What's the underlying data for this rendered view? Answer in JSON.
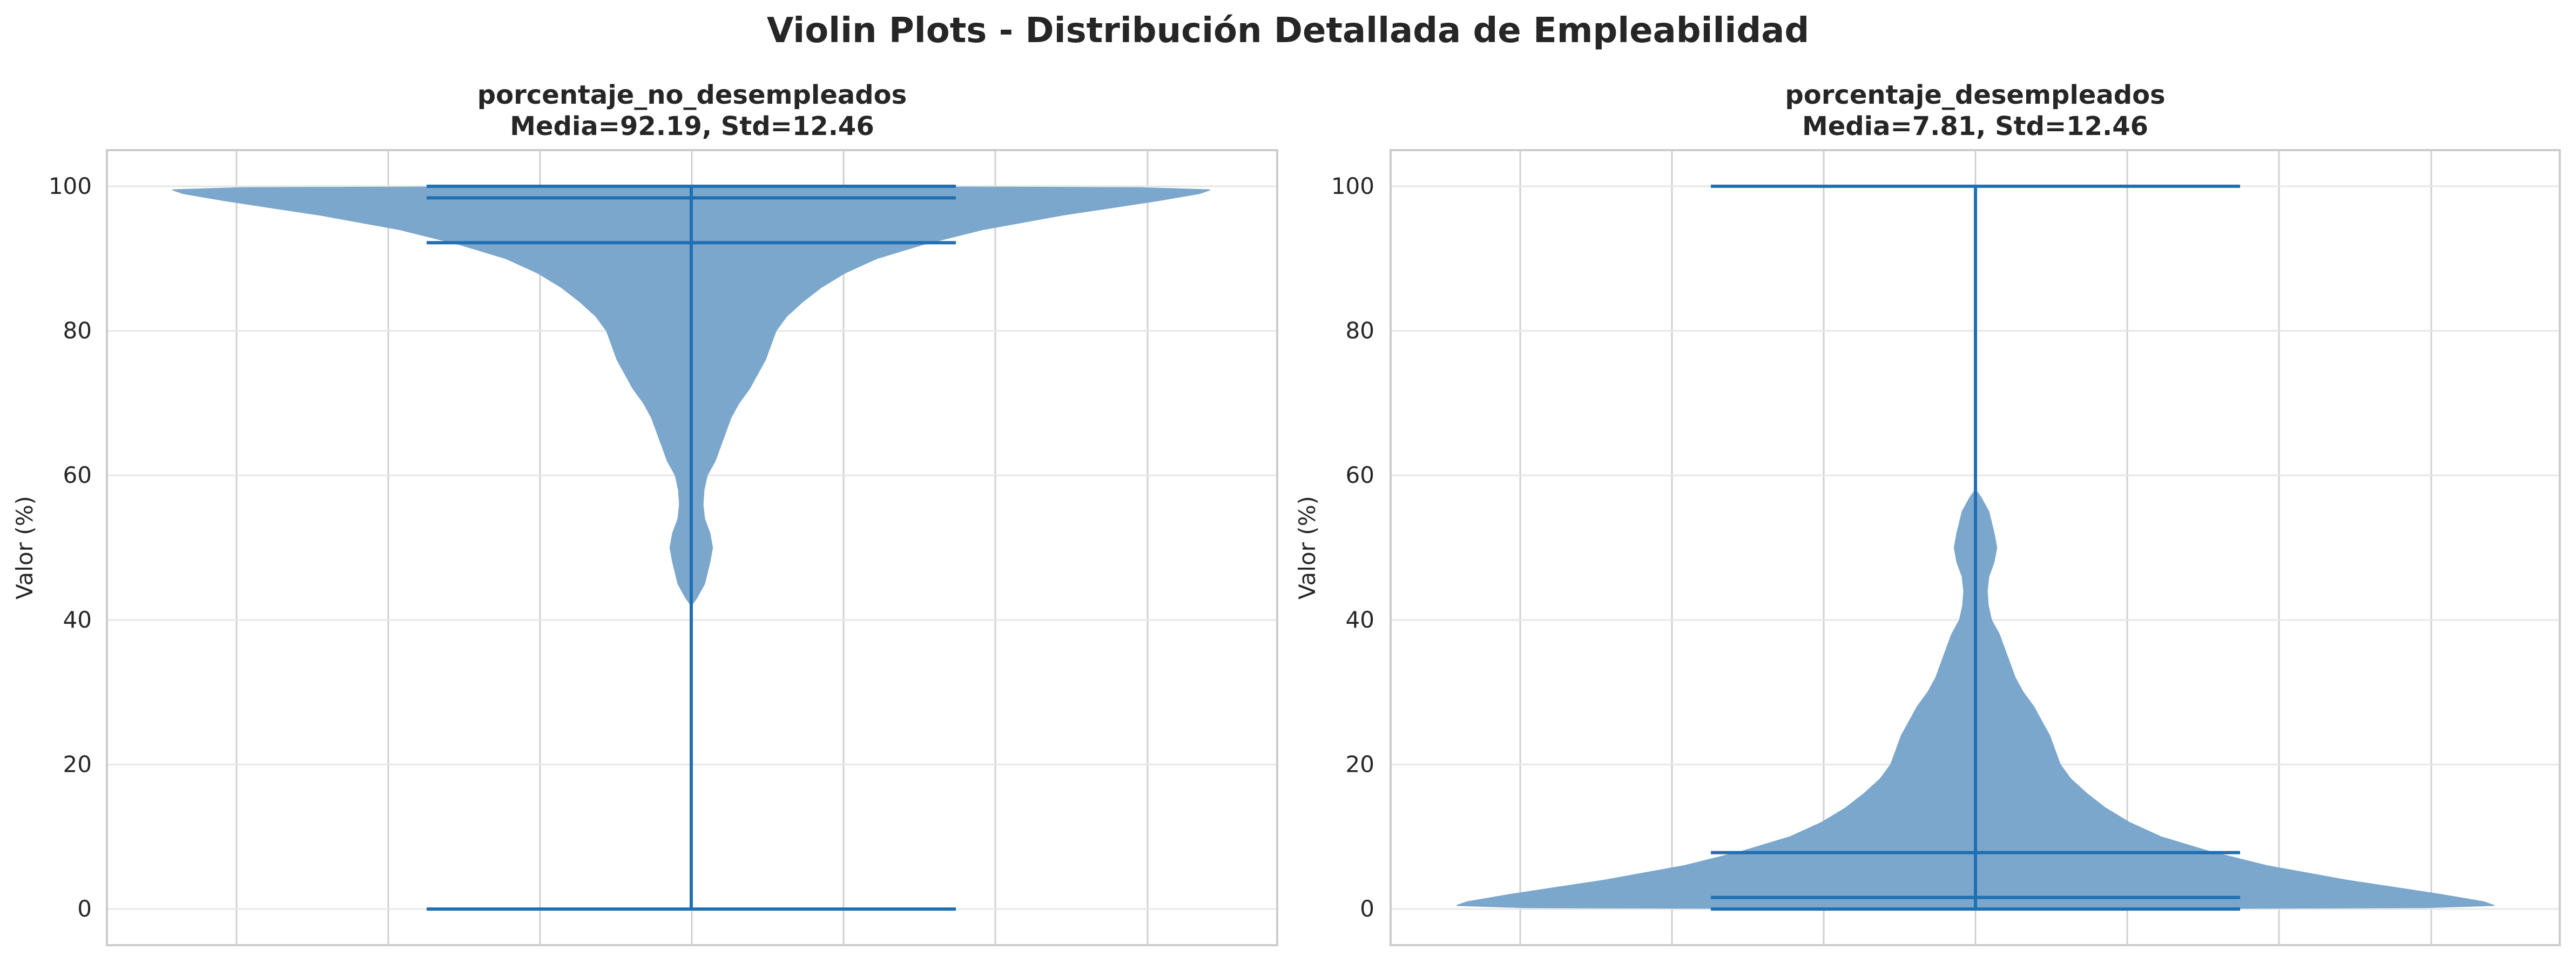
{
  "figure": {
    "title": "Violin Plots - Distribución Detallada de Empleabilidad"
  },
  "colors": {
    "violin_fill": "#7ba7cc",
    "violin_line": "#1f6fb2",
    "grid": "#e7e7e7",
    "vertical_grid": "#d0d0d0",
    "axes_border": "#cccccc",
    "text": "#262626"
  },
  "chart_data": [
    {
      "type": "violin",
      "title": "porcentaje_no_desempleados",
      "subtitle": "Media=92.19, Std=12.46",
      "xlabel": "",
      "ylabel": "Valor (%)",
      "ylim": [
        -5,
        105
      ],
      "yticks": [
        0,
        20,
        40,
        60,
        80,
        100
      ],
      "grid": true,
      "stats": {
        "min": 0,
        "max": 100,
        "mean": 92.19,
        "median": 98.4,
        "std": 12.46
      },
      "density_profile": [
        {
          "y": 42,
          "w": 0.0
        },
        {
          "y": 43,
          "w": 0.01
        },
        {
          "y": 45,
          "w": 0.025
        },
        {
          "y": 48,
          "w": 0.035
        },
        {
          "y": 50,
          "w": 0.04
        },
        {
          "y": 52,
          "w": 0.035
        },
        {
          "y": 54,
          "w": 0.025
        },
        {
          "y": 56,
          "w": 0.022
        },
        {
          "y": 58,
          "w": 0.024
        },
        {
          "y": 60,
          "w": 0.03
        },
        {
          "y": 62,
          "w": 0.045
        },
        {
          "y": 65,
          "w": 0.06
        },
        {
          "y": 68,
          "w": 0.075
        },
        {
          "y": 70,
          "w": 0.09
        },
        {
          "y": 72,
          "w": 0.11
        },
        {
          "y": 74,
          "w": 0.125
        },
        {
          "y": 76,
          "w": 0.14
        },
        {
          "y": 78,
          "w": 0.15
        },
        {
          "y": 80,
          "w": 0.16
        },
        {
          "y": 82,
          "w": 0.18
        },
        {
          "y": 84,
          "w": 0.21
        },
        {
          "y": 86,
          "w": 0.245
        },
        {
          "y": 88,
          "w": 0.29
        },
        {
          "y": 90,
          "w": 0.35
        },
        {
          "y": 92,
          "w": 0.44
        },
        {
          "y": 94,
          "w": 0.55
        },
        {
          "y": 96,
          "w": 0.7
        },
        {
          "y": 97,
          "w": 0.79
        },
        {
          "y": 98,
          "w": 0.88
        },
        {
          "y": 99,
          "w": 0.96
        },
        {
          "y": 99.5,
          "w": 0.98
        },
        {
          "y": 99.8,
          "w": 0.85
        },
        {
          "y": 100,
          "w": 0.0
        }
      ]
    },
    {
      "type": "violin",
      "title": "porcentaje_desempleados",
      "subtitle": "Media=7.81, Std=12.46",
      "xlabel": "",
      "ylabel": "Valor (%)",
      "ylim": [
        -5,
        105
      ],
      "yticks": [
        0,
        20,
        40,
        60,
        80,
        100
      ],
      "grid": true,
      "stats": {
        "min": 0,
        "max": 100,
        "mean": 7.81,
        "median": 1.6,
        "std": 12.46
      },
      "density_profile": [
        {
          "y": 0,
          "w": 0.0
        },
        {
          "y": 0.2,
          "w": 0.85
        },
        {
          "y": 0.5,
          "w": 0.98
        },
        {
          "y": 1,
          "w": 0.96
        },
        {
          "y": 2,
          "w": 0.88
        },
        {
          "y": 3,
          "w": 0.79
        },
        {
          "y": 4,
          "w": 0.7
        },
        {
          "y": 6,
          "w": 0.55
        },
        {
          "y": 8,
          "w": 0.44
        },
        {
          "y": 10,
          "w": 0.35
        },
        {
          "y": 12,
          "w": 0.29
        },
        {
          "y": 14,
          "w": 0.245
        },
        {
          "y": 16,
          "w": 0.21
        },
        {
          "y": 18,
          "w": 0.18
        },
        {
          "y": 20,
          "w": 0.16
        },
        {
          "y": 22,
          "w": 0.15
        },
        {
          "y": 24,
          "w": 0.14
        },
        {
          "y": 26,
          "w": 0.125
        },
        {
          "y": 28,
          "w": 0.11
        },
        {
          "y": 30,
          "w": 0.09
        },
        {
          "y": 32,
          "w": 0.075
        },
        {
          "y": 35,
          "w": 0.06
        },
        {
          "y": 38,
          "w": 0.045
        },
        {
          "y": 40,
          "w": 0.03
        },
        {
          "y": 42,
          "w": 0.024
        },
        {
          "y": 44,
          "w": 0.022
        },
        {
          "y": 46,
          "w": 0.025
        },
        {
          "y": 48,
          "w": 0.035
        },
        {
          "y": 50,
          "w": 0.04
        },
        {
          "y": 52,
          "w": 0.035
        },
        {
          "y": 55,
          "w": 0.025
        },
        {
          "y": 57,
          "w": 0.01
        },
        {
          "y": 58,
          "w": 0.0
        }
      ]
    }
  ]
}
